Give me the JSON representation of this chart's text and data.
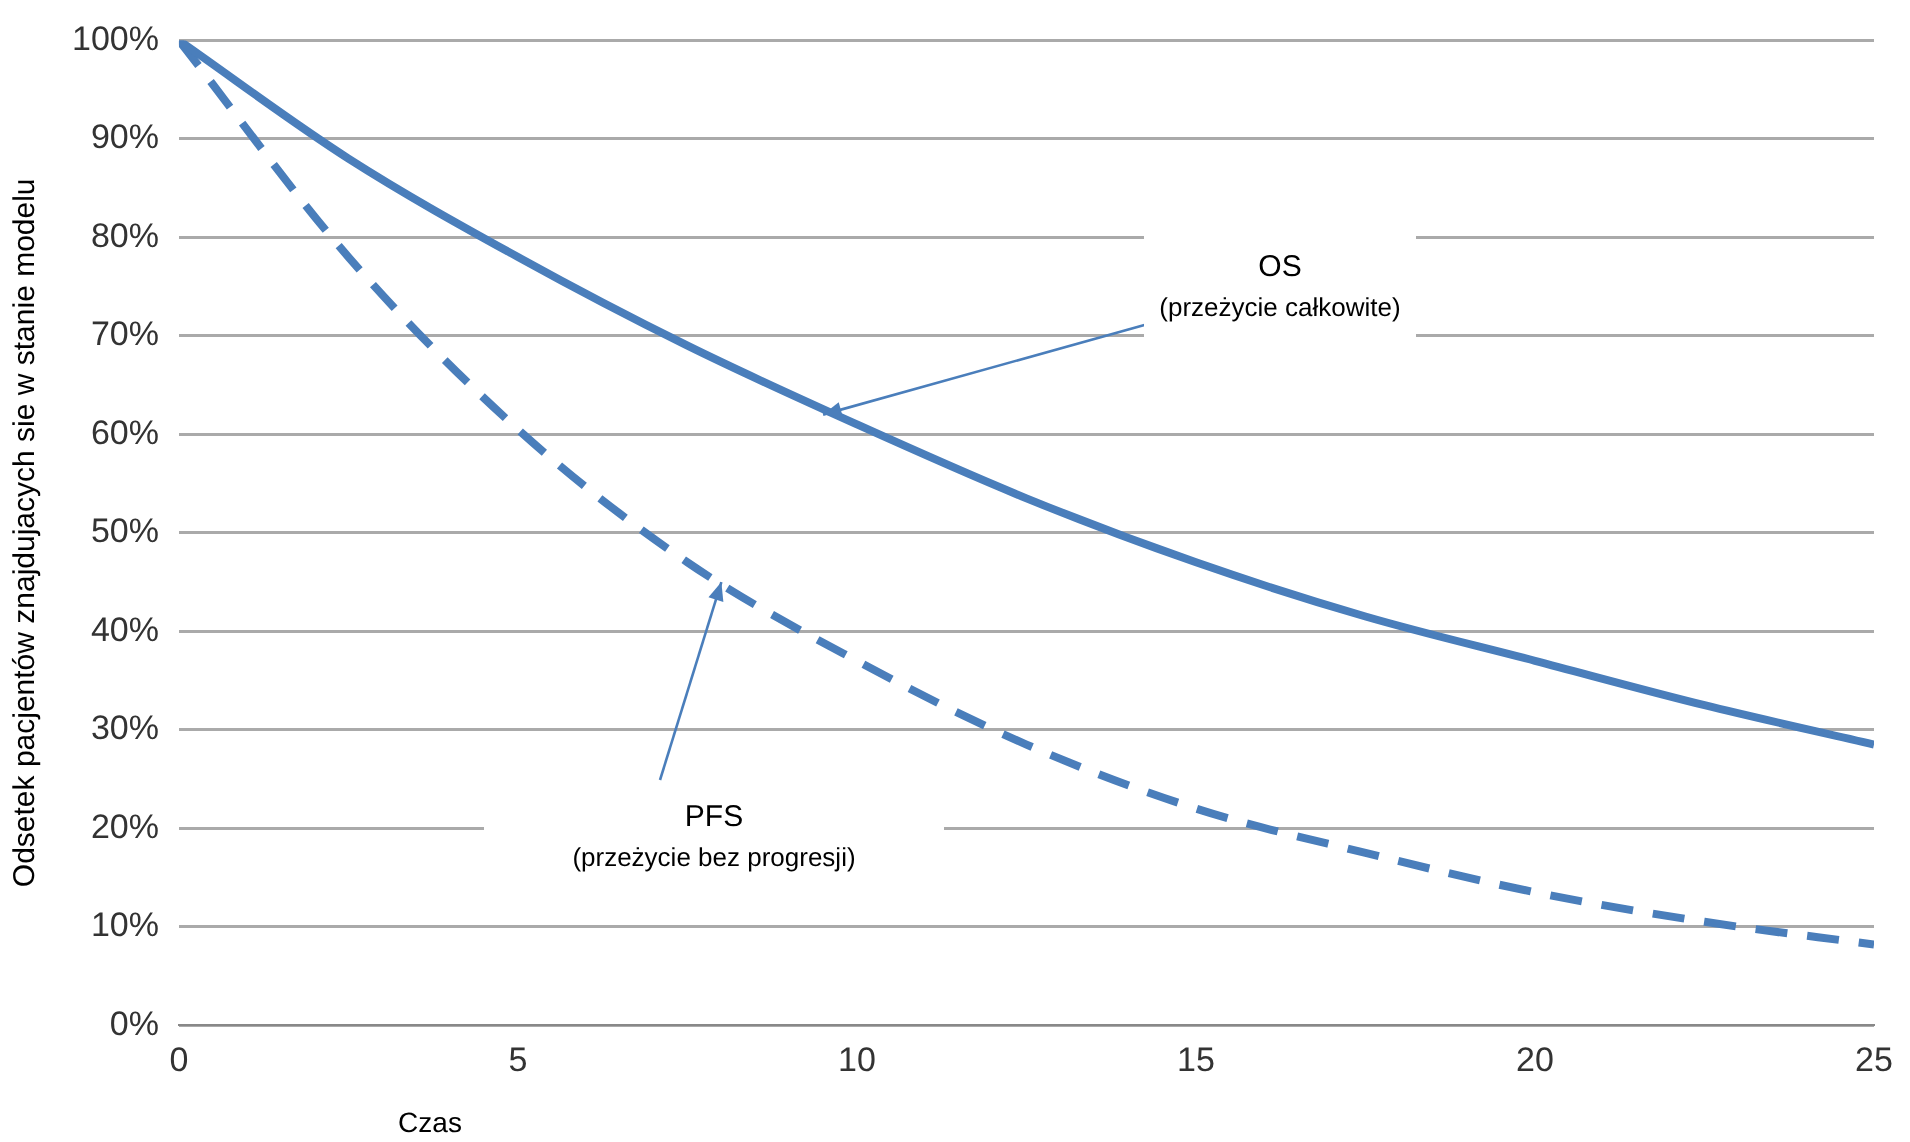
{
  "chart_data": {
    "type": "line",
    "xlabel": "Czas",
    "ylabel": "Odsetek pacjentów znajdujacych sie w stanie modelu",
    "xlim": [
      0,
      25
    ],
    "xticks": [
      0,
      5,
      10,
      15,
      20,
      25
    ],
    "ylim": [
      0,
      100
    ],
    "yticks": [
      {
        "value": 0,
        "label": "0%"
      },
      {
        "value": 10,
        "label": "10%"
      },
      {
        "value": 20,
        "label": "20%"
      },
      {
        "value": 30,
        "label": "30%"
      },
      {
        "value": 40,
        "label": "40%"
      },
      {
        "value": 50,
        "label": "50%"
      },
      {
        "value": 60,
        "label": "60%"
      },
      {
        "value": 70,
        "label": "70%"
      },
      {
        "value": 80,
        "label": "80%"
      },
      {
        "value": 90,
        "label": "90%"
      },
      {
        "value": 100,
        "label": "100%"
      }
    ],
    "grid": "y",
    "marker": "none",
    "series": [
      {
        "color": "#4a7ebb",
        "line_style": "solid",
        "x": [
          0,
          2.5,
          5,
          7.5,
          10,
          12.5,
          15,
          17.5,
          20,
          22.5,
          25
        ],
        "values": [
          100,
          88,
          78,
          69,
          61,
          53.5,
          47,
          41.5,
          37,
          32.5,
          28.5
        ]
      },
      {
        "color": "#4a7ebb",
        "line_style": "dashed",
        "x": [
          0,
          2.5,
          5,
          7.5,
          10,
          12.5,
          15,
          17.5,
          20,
          22.5,
          25
        ],
        "values": [
          100,
          78,
          60.5,
          47,
          37,
          28.5,
          22,
          17.5,
          13.5,
          10.5,
          8.2
        ]
      }
    ],
    "annotations": [
      "OS",
      {
        "text": "(przeżycie całkowite)",
        "x": 9.5,
        "y": 62
      },
      {
        "text": "PFS",
        "x": 8,
        "y": 45
      },
      "(przeżycie bez progresji)"
    ]
  }
}
